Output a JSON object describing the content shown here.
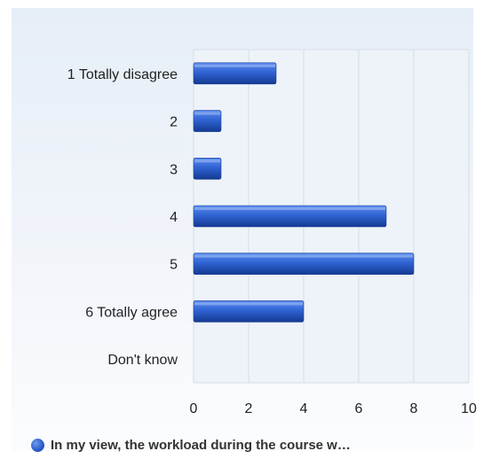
{
  "chart_data": {
    "type": "bar",
    "orientation": "horizontal",
    "categories": [
      "1 Totally   disagree",
      "2",
      "3",
      "4",
      "5",
      "6 Totally   agree",
      "Don't know"
    ],
    "series": [
      {
        "name": "In my view, the workload during the course w…",
        "values": [
          3,
          1,
          1,
          7,
          8,
          4,
          0
        ]
      }
    ],
    "x_ticks": [
      "0",
      "2",
      "4",
      "6",
      "8",
      "10"
    ],
    "xlim": [
      0,
      10
    ],
    "grid": true,
    "legend_position": "bottom",
    "colors": {
      "bar_light": "#3f78e0",
      "bar_dark": "#163c96",
      "grid": "#d7dde6"
    }
  }
}
